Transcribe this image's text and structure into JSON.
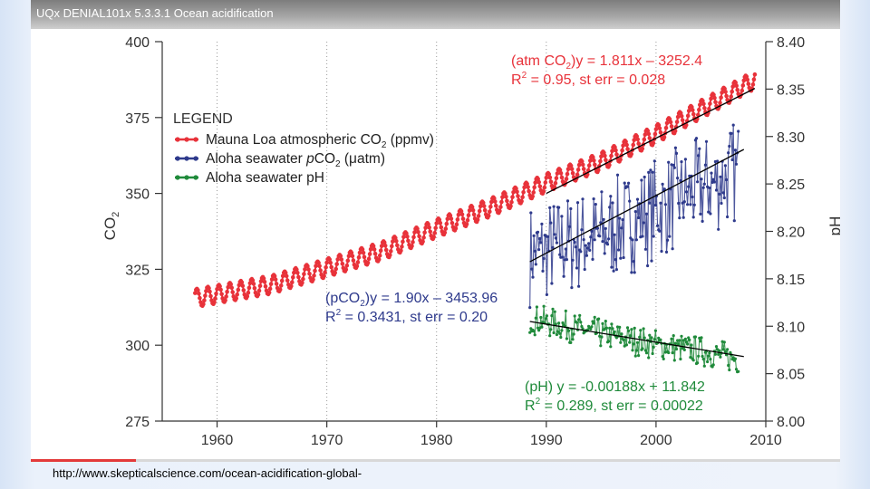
{
  "video": {
    "title": "UQx DENIAL101x 5.3.3.1 Ocean acidification",
    "progress": 0.13
  },
  "source_url": "http://www.skepticalscience.com/ocean-acidification-global-",
  "colors": {
    "mauna_loa": "#e8323a",
    "aloha_pco2": "#2e3a8c",
    "aloha_ph": "#1f8a3a",
    "fit_line": "#000000",
    "axis": "#333333"
  },
  "chart_data": {
    "type": "line",
    "xlabel": "",
    "ylabel": "CO2",
    "y2label": "pH",
    "xlim": [
      1955,
      2010
    ],
    "ylim": [
      275,
      400
    ],
    "y2lim": [
      8.0,
      8.4
    ],
    "x_ticks": [
      1960,
      1970,
      1980,
      1990,
      2000,
      2010
    ],
    "y_ticks": [
      275,
      300,
      325,
      350,
      375,
      400
    ],
    "y2_ticks": [
      "8.00",
      "8.05",
      "8.10",
      "8.15",
      "8.20",
      "8.25",
      "8.30",
      "8.35",
      "8.40"
    ],
    "legend": {
      "title": "LEGEND",
      "placement": "top-left",
      "entries": [
        {
          "key": "mauna_loa",
          "text": "Mauna Loa atmospheric CO",
          "sub": "2",
          "tail": " (ppmv)"
        },
        {
          "key": "aloha_pco2",
          "text": "Aloha seawater ",
          "italic": "p",
          "text2": "CO",
          "sub": "2",
          "tail": " (μatm)"
        },
        {
          "key": "aloha_ph",
          "text": "Aloha seawater pH"
        }
      ]
    },
    "series": [
      {
        "key": "mauna_loa",
        "axis": "left",
        "trend": [
          [
            1958,
            315.5
          ],
          [
            1965,
            320.0
          ],
          [
            1970,
            325.5
          ],
          [
            1975,
            331.0
          ],
          [
            1980,
            338.5
          ],
          [
            1985,
            345.5
          ],
          [
            1990,
            353.5
          ],
          [
            1995,
            360.5
          ],
          [
            2000,
            369.5
          ],
          [
            2005,
            379.5
          ],
          [
            2009,
            387.5
          ]
        ],
        "seasonal_amplitude": 3
      },
      {
        "key": "aloha_pco2",
        "axis": "left",
        "trend": [
          [
            1988.5,
            330.0
          ],
          [
            1995,
            336.0
          ],
          [
            2000,
            345.0
          ],
          [
            2005,
            353.0
          ],
          [
            2007.5,
            358.0
          ]
        ],
        "noise_amplitude": 16
      },
      {
        "key": "aloha_ph",
        "axis": "right",
        "trend": [
          [
            1988.5,
            8.108
          ],
          [
            1995,
            8.092
          ],
          [
            2000,
            8.081
          ],
          [
            2005,
            8.072
          ],
          [
            2007.5,
            8.065
          ]
        ],
        "noise_amplitude": 0.015
      }
    ],
    "fit_lines": [
      {
        "axis": "left",
        "points": [
          [
            1990,
            350.0
          ],
          [
            2009,
            384.6
          ]
        ]
      },
      {
        "axis": "left",
        "points": [
          [
            1988.5,
            327.5
          ],
          [
            2008,
            364.5
          ]
        ]
      },
      {
        "axis": "right",
        "points": [
          [
            1988.5,
            8.105
          ],
          [
            2008,
            8.068
          ]
        ]
      }
    ],
    "annotations": [
      {
        "key": "mauna_loa",
        "line1": "(atm CO",
        "line1_sub": "2",
        "line1_tail": ")y = 1.811x – 3252.4",
        "line2": "R",
        "line2_sup": "2",
        "line2_tail": " = 0.95, st err = 0.028"
      },
      {
        "key": "aloha_pco2",
        "line1": "(pCO",
        "line1_sub": "2",
        "line1_tail": ")y = 1.90x – 3453.96",
        "line2": "R",
        "line2_sup": "2",
        "line2_tail": " = 0.3431, st err = 0.20"
      },
      {
        "key": "aloha_ph",
        "line1": "(pH) y = -0.00188x + 11.842",
        "line2": "R",
        "line2_sup": "2",
        "line2_tail": " = 0.289, st err = 0.00022"
      }
    ]
  }
}
